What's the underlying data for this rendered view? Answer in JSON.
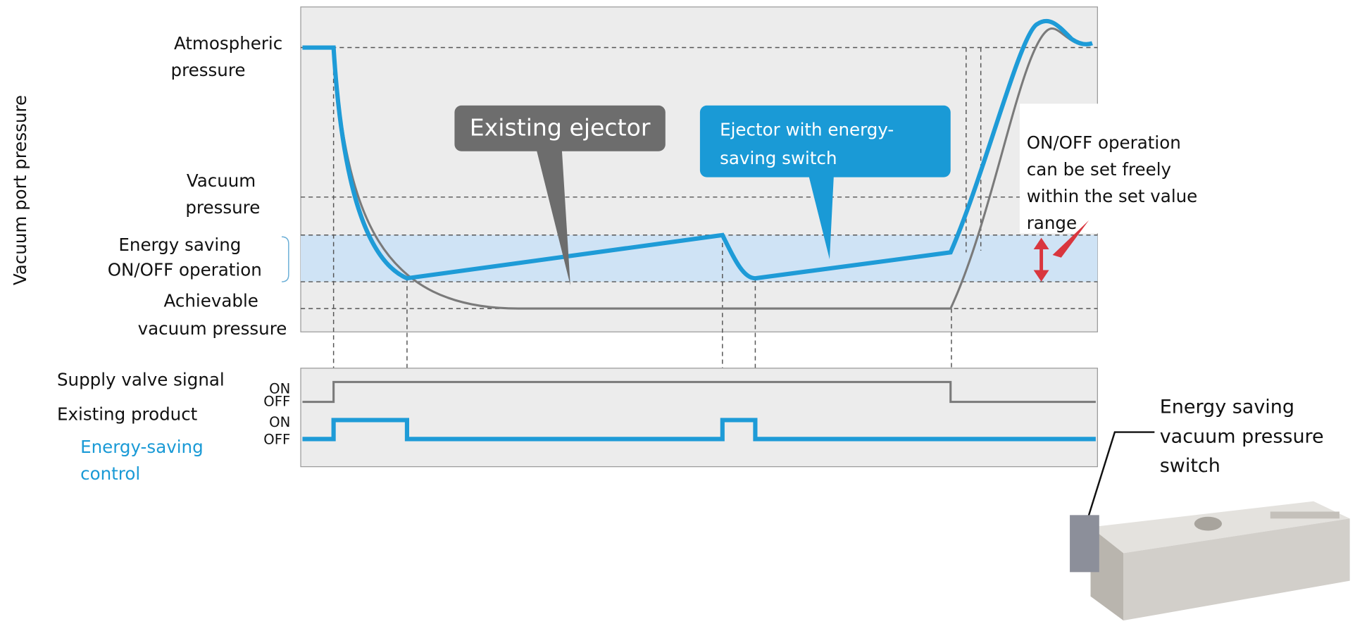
{
  "y_axis_label": "Vacuum port pressure",
  "levels": [
    {
      "lines": [
        "Atmospheric",
        "pressure"
      ]
    },
    {
      "lines": [
        "Vacuum",
        "pressure"
      ]
    },
    {
      "lines": [
        "Energy saving",
        "ON/OFF operation"
      ]
    },
    {
      "lines": [
        "Achievable",
        "vacuum pressure"
      ]
    }
  ],
  "callouts": {
    "existing": "Existing ejector",
    "energy_saving": [
      "Ejector with energy-",
      "saving switch"
    ],
    "note": [
      "ON/OFF operation",
      "can be set freely",
      "within the set value",
      "range"
    ]
  },
  "signals": {
    "supply": "Supply valve signal",
    "existing": "Existing product",
    "control": [
      "Energy-saving",
      "control"
    ],
    "states": [
      "ON",
      "OFF",
      "ON",
      "OFF"
    ]
  },
  "product_label": [
    "Energy saving",
    "vacuum pressure",
    "switch"
  ]
}
